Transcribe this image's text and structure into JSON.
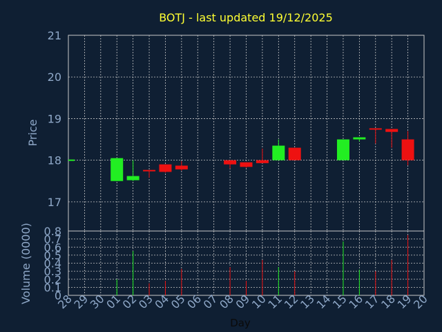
{
  "chart_data": {
    "type": "candlestick",
    "title": "BOTJ - last updated 19/12/2025",
    "price_panel": {
      "ylabel": "Price",
      "ylim": [
        16.3,
        21
      ],
      "yticks": [
        17,
        18,
        19,
        20,
        21
      ]
    },
    "volume_panel": {
      "ylabel": "Volume (0000)",
      "ylim": [
        0,
        0.8
      ],
      "yticks": [
        0,
        0.1,
        0.2,
        0.3,
        0.4,
        0.5,
        0.6,
        0.7,
        0.8
      ]
    },
    "xlabel": "Day",
    "x_ticks": [
      "28",
      "29",
      "30",
      "01",
      "02",
      "03",
      "04",
      "05",
      "06",
      "07",
      "08",
      "09",
      "10",
      "11",
      "12",
      "13",
      "14",
      "15",
      "16",
      "17",
      "18",
      "19",
      "20"
    ],
    "candles": [
      {
        "day": "28",
        "open": 18.0,
        "high": 18.0,
        "low": 18.0,
        "close": 18.0,
        "volume": 0.0
      },
      {
        "day": "01",
        "open": 17.5,
        "high": 18.05,
        "low": 17.5,
        "close": 18.05,
        "volume": 0.2
      },
      {
        "day": "02",
        "open": 17.52,
        "high": 18.0,
        "low": 17.5,
        "close": 17.62,
        "volume": 0.55
      },
      {
        "day": "03",
        "open": 17.75,
        "high": 17.75,
        "low": 17.58,
        "close": 17.72,
        "volume": 0.15
      },
      {
        "day": "04",
        "open": 17.9,
        "high": 17.9,
        "low": 17.7,
        "close": 17.72,
        "volume": 0.18
      },
      {
        "day": "05",
        "open": 17.87,
        "high": 17.98,
        "low": 17.75,
        "close": 17.78,
        "volume": 0.33
      },
      {
        "day": "08",
        "open": 18.0,
        "high": 18.0,
        "low": 17.8,
        "close": 17.9,
        "volume": 0.35
      },
      {
        "day": "09",
        "open": 17.95,
        "high": 17.95,
        "low": 17.82,
        "close": 17.84,
        "volume": 0.18
      },
      {
        "day": "10",
        "open": 18.0,
        "high": 18.28,
        "low": 17.93,
        "close": 17.93,
        "volume": 0.44
      },
      {
        "day": "11",
        "open": 18.0,
        "high": 18.5,
        "low": 18.0,
        "close": 18.35,
        "volume": 0.35
      },
      {
        "day": "12",
        "open": 18.3,
        "high": 18.3,
        "low": 18.0,
        "close": 18.0,
        "volume": 0.3
      },
      {
        "day": "15",
        "open": 18.0,
        "high": 18.5,
        "low": 18.0,
        "close": 18.5,
        "volume": 0.67
      },
      {
        "day": "16",
        "open": 18.5,
        "high": 18.55,
        "low": 18.45,
        "close": 18.55,
        "volume": 0.32
      },
      {
        "day": "17",
        "open": 18.75,
        "high": 18.75,
        "low": 18.4,
        "close": 18.72,
        "volume": 0.3
      },
      {
        "day": "18",
        "open": 18.75,
        "high": 18.75,
        "low": 18.3,
        "close": 18.68,
        "volume": 0.44
      },
      {
        "day": "19",
        "open": 18.5,
        "high": 18.7,
        "low": 17.88,
        "close": 18.0,
        "volume": 0.75
      }
    ],
    "grid": true,
    "colors": {
      "background": "#0f1f33",
      "up": "#22ee22",
      "down": "#ee1111",
      "title": "#ffff33",
      "axis_text": "#8fa8c8",
      "grid": "#c8c8c8"
    }
  }
}
